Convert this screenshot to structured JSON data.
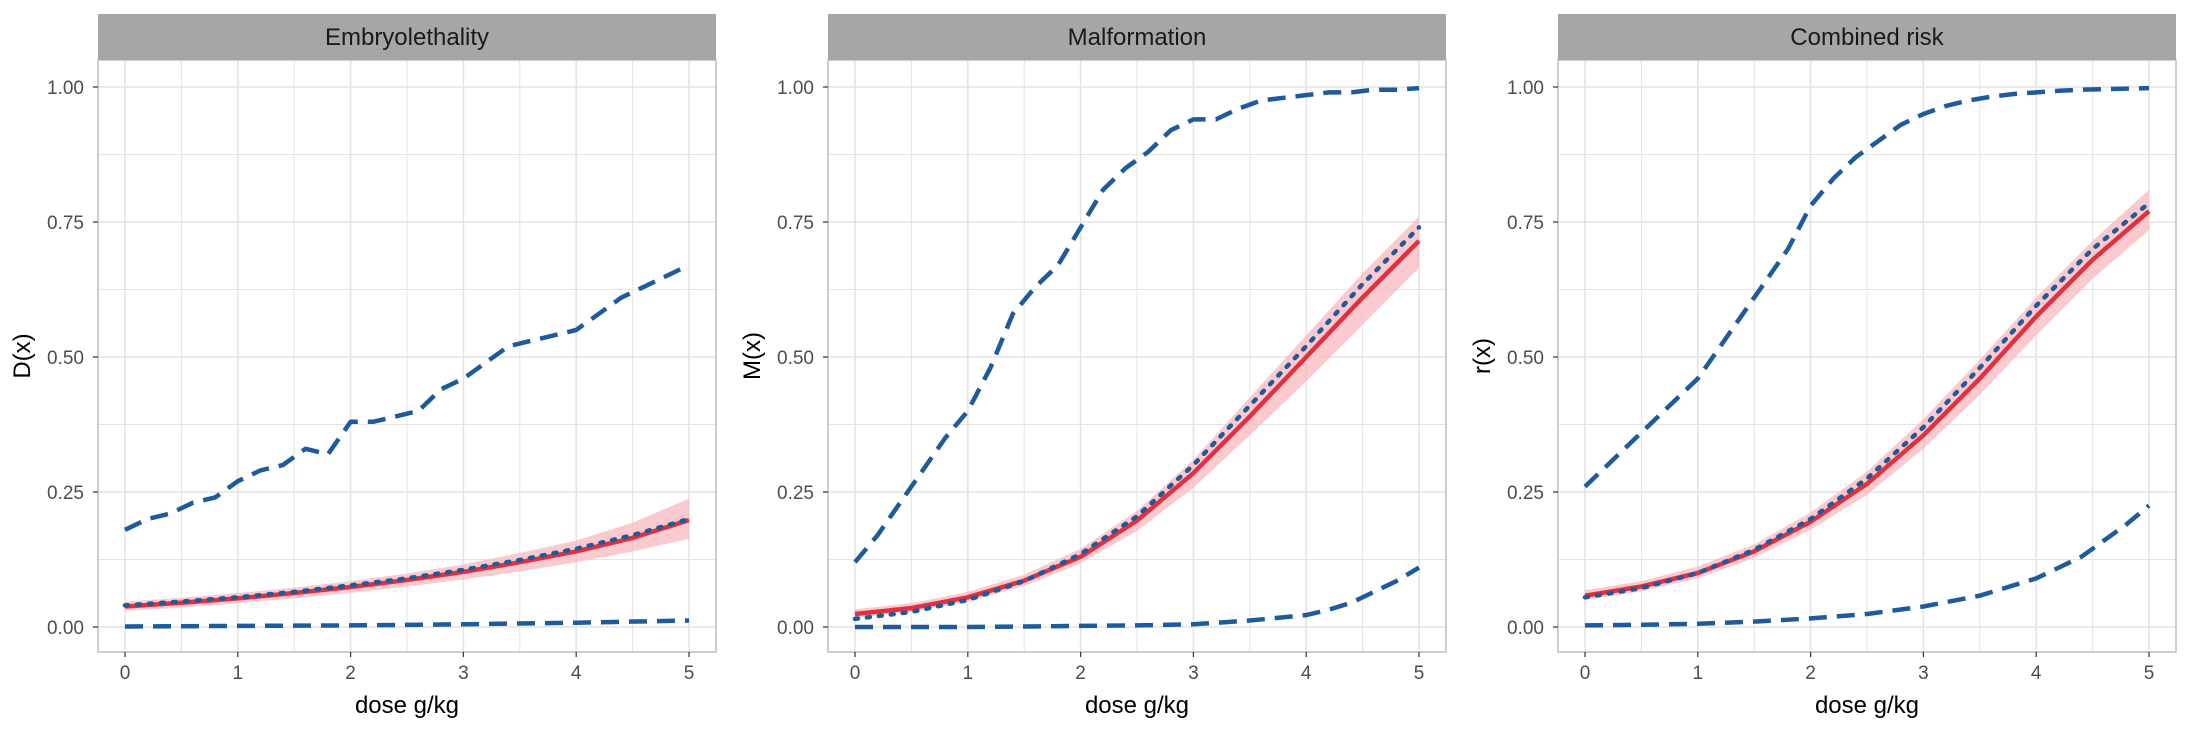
{
  "figure": {
    "xlabel": "dose g/kg",
    "xticks": [
      "0",
      "1",
      "2",
      "3",
      "4",
      "5"
    ],
    "yticks": [
      "0.00",
      "0.25",
      "0.50",
      "0.75",
      "1.00"
    ]
  },
  "colors": {
    "strip_bg": "#A6A6A6",
    "fit_line": "#E03140",
    "fit_band": "#F9B8BE",
    "bound_line": "#1F5B9B",
    "grid": "#E4E4E4",
    "panel_border": "#BDBDBD"
  },
  "chart_data": [
    {
      "type": "line",
      "title": "Embryolethality",
      "xlabel": "dose g/kg",
      "ylabel": "D(x)",
      "xlim": [
        0,
        5
      ],
      "ylim": [
        0,
        1
      ],
      "series": [
        {
          "name": "estimate",
          "style": "solid",
          "x": [
            0,
            0.5,
            1,
            1.5,
            2,
            2.5,
            3,
            3.5,
            4,
            4.5,
            5
          ],
          "values": [
            0.038,
            0.045,
            0.053,
            0.063,
            0.074,
            0.087,
            0.102,
            0.12,
            0.14,
            0.165,
            0.198
          ]
        },
        {
          "name": "band lower",
          "style": "band",
          "x": [
            0,
            0.5,
            1,
            1.5,
            2,
            2.5,
            3,
            3.5,
            4,
            4.5,
            5
          ],
          "values": [
            0.03,
            0.036,
            0.044,
            0.053,
            0.063,
            0.075,
            0.088,
            0.103,
            0.12,
            0.14,
            0.163
          ]
        },
        {
          "name": "band upper",
          "style": "band",
          "x": [
            0,
            0.5,
            1,
            1.5,
            2,
            2.5,
            3,
            3.5,
            4,
            4.5,
            5
          ],
          "values": [
            0.047,
            0.054,
            0.063,
            0.073,
            0.085,
            0.099,
            0.116,
            0.137,
            0.16,
            0.193,
            0.238
          ]
        },
        {
          "name": "dotted curve",
          "style": "dotted",
          "x": [
            0,
            0.5,
            1,
            1.5,
            2,
            2.5,
            3,
            3.5,
            4,
            4.5,
            5
          ],
          "values": [
            0.04,
            0.047,
            0.055,
            0.065,
            0.077,
            0.09,
            0.106,
            0.124,
            0.145,
            0.17,
            0.2
          ]
        },
        {
          "name": "upper bound",
          "style": "dashed",
          "x": [
            0,
            0.2,
            0.4,
            0.6,
            0.8,
            1.0,
            1.2,
            1.4,
            1.6,
            1.8,
            2.0,
            2.2,
            2.4,
            2.6,
            2.8,
            3.0,
            3.2,
            3.4,
            3.6,
            3.8,
            4.0,
            4.2,
            4.4,
            4.6,
            4.8,
            5.0
          ],
          "values": [
            0.18,
            0.2,
            0.21,
            0.23,
            0.24,
            0.27,
            0.29,
            0.3,
            0.33,
            0.32,
            0.38,
            0.38,
            0.39,
            0.4,
            0.44,
            0.46,
            0.49,
            0.52,
            0.53,
            0.54,
            0.55,
            0.58,
            0.61,
            0.63,
            0.65,
            0.67
          ]
        },
        {
          "name": "lower bound",
          "style": "dashed",
          "x": [
            0,
            1,
            2,
            3,
            4,
            5
          ],
          "values": [
            0.001,
            0.002,
            0.003,
            0.005,
            0.008,
            0.012
          ]
        }
      ]
    },
    {
      "type": "line",
      "title": "Malformation",
      "xlabel": "dose g/kg",
      "ylabel": "M(x)",
      "xlim": [
        0,
        5
      ],
      "ylim": [
        0,
        1
      ],
      "series": [
        {
          "name": "estimate",
          "style": "solid",
          "x": [
            0,
            0.5,
            1,
            1.5,
            2,
            2.5,
            3,
            3.5,
            4,
            4.5,
            5
          ],
          "values": [
            0.024,
            0.035,
            0.055,
            0.086,
            0.13,
            0.197,
            0.285,
            0.39,
            0.5,
            0.61,
            0.715
          ]
        },
        {
          "name": "band lower",
          "style": "band",
          "x": [
            0,
            0.5,
            1,
            1.5,
            2,
            2.5,
            3,
            3.5,
            4,
            4.5,
            5
          ],
          "values": [
            0.017,
            0.028,
            0.047,
            0.076,
            0.118,
            0.178,
            0.258,
            0.355,
            0.455,
            0.56,
            0.665
          ]
        },
        {
          "name": "band upper",
          "style": "band",
          "x": [
            0,
            0.5,
            1,
            1.5,
            2,
            2.5,
            3,
            3.5,
            4,
            4.5,
            5
          ],
          "values": [
            0.033,
            0.044,
            0.065,
            0.097,
            0.145,
            0.215,
            0.31,
            0.425,
            0.54,
            0.655,
            0.76
          ]
        },
        {
          "name": "dotted curve",
          "style": "dotted",
          "x": [
            0,
            0.5,
            1,
            1.5,
            2,
            2.5,
            3,
            3.5,
            4,
            4.5,
            5
          ],
          "values": [
            0.015,
            0.028,
            0.05,
            0.085,
            0.135,
            0.205,
            0.3,
            0.41,
            0.52,
            0.635,
            0.74
          ]
        },
        {
          "name": "upper bound",
          "style": "dashed",
          "x": [
            0,
            0.2,
            0.4,
            0.6,
            0.8,
            1.0,
            1.2,
            1.4,
            1.6,
            1.8,
            2.0,
            2.2,
            2.4,
            2.6,
            2.8,
            3.0,
            3.2,
            3.4,
            3.6,
            3.8,
            4.0,
            4.2,
            4.4,
            4.6,
            4.8,
            5.0
          ],
          "values": [
            0.12,
            0.17,
            0.23,
            0.29,
            0.35,
            0.4,
            0.48,
            0.58,
            0.63,
            0.67,
            0.74,
            0.81,
            0.85,
            0.88,
            0.92,
            0.94,
            0.94,
            0.96,
            0.975,
            0.98,
            0.985,
            0.99,
            0.99,
            0.995,
            0.995,
            0.998
          ]
        },
        {
          "name": "lower bound",
          "style": "dashed",
          "x": [
            0,
            0.5,
            1,
            1.5,
            2,
            2.5,
            3,
            3.5,
            4,
            4.2,
            4.4,
            4.6,
            4.8,
            5.0
          ],
          "values": [
            0.0,
            0.0,
            0.0,
            0.001,
            0.002,
            0.003,
            0.005,
            0.012,
            0.022,
            0.032,
            0.045,
            0.065,
            0.085,
            0.11
          ]
        }
      ]
    },
    {
      "type": "line",
      "title": "Combined risk",
      "xlabel": "dose g/kg",
      "ylabel": "r(x)",
      "xlim": [
        0,
        5
      ],
      "ylim": [
        0,
        1
      ],
      "series": [
        {
          "name": "estimate",
          "style": "solid",
          "x": [
            0,
            0.5,
            1,
            1.5,
            2,
            2.5,
            3,
            3.5,
            4,
            4.5,
            5
          ],
          "values": [
            0.058,
            0.075,
            0.1,
            0.14,
            0.195,
            0.265,
            0.355,
            0.46,
            0.575,
            0.68,
            0.77
          ]
        },
        {
          "name": "band lower",
          "style": "band",
          "x": [
            0,
            0.5,
            1,
            1.5,
            2,
            2.5,
            3,
            3.5,
            4,
            4.5,
            5
          ],
          "values": [
            0.05,
            0.066,
            0.09,
            0.128,
            0.18,
            0.245,
            0.33,
            0.43,
            0.54,
            0.645,
            0.735
          ]
        },
        {
          "name": "band upper",
          "style": "band",
          "x": [
            0,
            0.5,
            1,
            1.5,
            2,
            2.5,
            3,
            3.5,
            4,
            4.5,
            5
          ],
          "values": [
            0.068,
            0.085,
            0.112,
            0.153,
            0.212,
            0.288,
            0.385,
            0.495,
            0.61,
            0.715,
            0.81
          ]
        },
        {
          "name": "dotted curve",
          "style": "dotted",
          "x": [
            0,
            0.5,
            1,
            1.5,
            2,
            2.5,
            3,
            3.5,
            4,
            4.5,
            5
          ],
          "values": [
            0.055,
            0.072,
            0.1,
            0.143,
            0.2,
            0.275,
            0.37,
            0.48,
            0.595,
            0.7,
            0.785
          ]
        },
        {
          "name": "upper bound",
          "style": "dashed",
          "x": [
            0,
            0.2,
            0.4,
            0.6,
            0.8,
            1.0,
            1.2,
            1.4,
            1.6,
            1.8,
            2.0,
            2.2,
            2.4,
            2.6,
            2.8,
            3.0,
            3.2,
            3.4,
            3.6,
            3.8,
            4.0,
            4.2,
            4.4,
            4.6,
            4.8,
            5.0
          ],
          "values": [
            0.26,
            0.3,
            0.34,
            0.38,
            0.42,
            0.46,
            0.52,
            0.58,
            0.64,
            0.7,
            0.78,
            0.83,
            0.87,
            0.9,
            0.93,
            0.95,
            0.965,
            0.975,
            0.982,
            0.987,
            0.99,
            0.993,
            0.995,
            0.996,
            0.997,
            0.998
          ]
        },
        {
          "name": "lower bound",
          "style": "dashed",
          "x": [
            0,
            0.5,
            1,
            1.5,
            2,
            2.5,
            3,
            3.5,
            4,
            4.2,
            4.4,
            4.6,
            4.8,
            5.0
          ],
          "values": [
            0.003,
            0.004,
            0.006,
            0.01,
            0.016,
            0.024,
            0.038,
            0.058,
            0.09,
            0.11,
            0.13,
            0.16,
            0.19,
            0.225
          ]
        }
      ]
    }
  ]
}
